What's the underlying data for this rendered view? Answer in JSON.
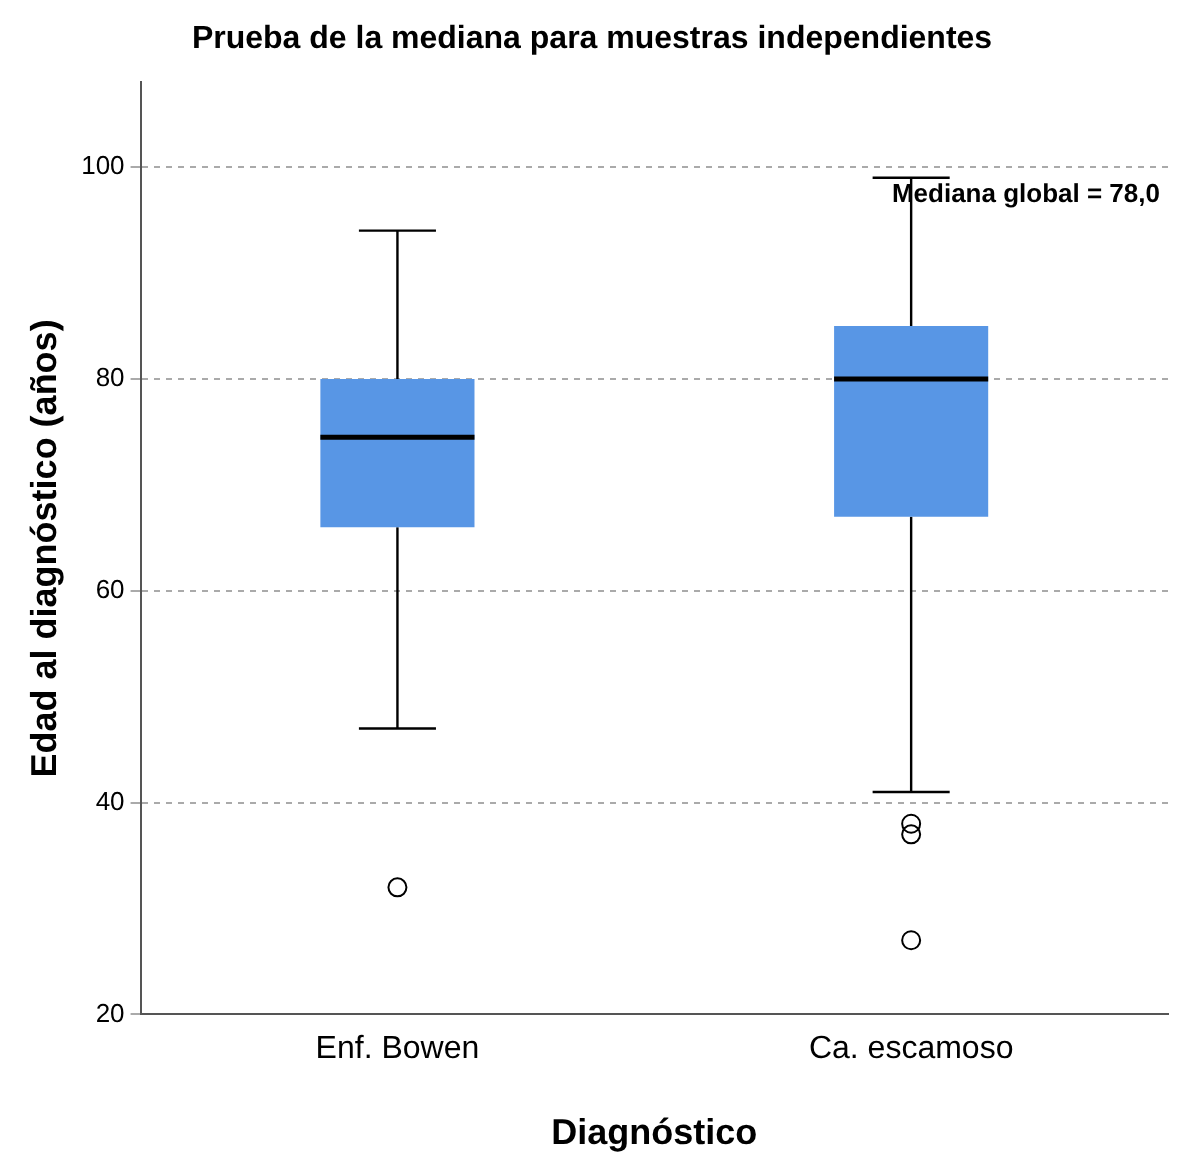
{
  "chart_data": {
    "type": "box",
    "title": "Prueba de la mediana para muestras independientes",
    "xlabel": "Diagnóstico",
    "ylabel": "Edad al diagnóstico (años)",
    "categories": [
      "Enf. Bowen",
      "Ca. escamoso"
    ],
    "color": "#5896e5",
    "boxes": [
      {
        "low": 47,
        "q1": 66,
        "median": 74.5,
        "q3": 80,
        "high": 94,
        "outliers": [
          32
        ]
      },
      {
        "low": 41,
        "q1": 67,
        "median": 80,
        "q3": 85,
        "high": 99,
        "outliers": [
          38,
          37,
          27
        ]
      }
    ],
    "ylim": [
      20,
      108
    ],
    "yticks": [
      20,
      40,
      60,
      80,
      100
    ],
    "grid": "y",
    "annotations": [
      "Mediana global = 78,0"
    ]
  }
}
